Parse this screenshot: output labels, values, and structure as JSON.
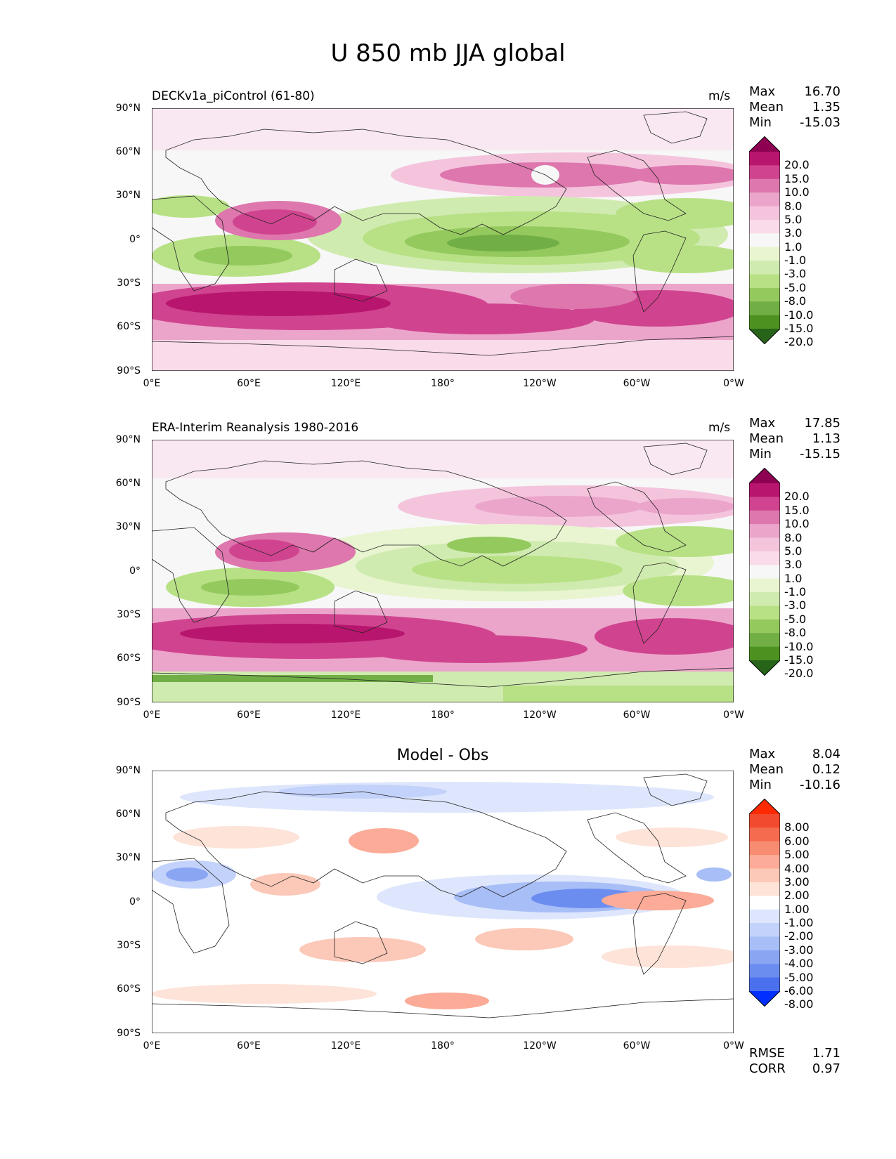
{
  "figure": {
    "title": "U 850 mb JJA global"
  },
  "axes": {
    "y_ticks": [
      "90°N",
      "60°N",
      "30°N",
      "0°",
      "30°S",
      "60°S",
      "90°S"
    ],
    "x_ticks": [
      "0°E",
      "60°E",
      "120°E",
      "180°",
      "120°W",
      "60°W",
      "0°W"
    ]
  },
  "panels": [
    {
      "title": "DECKv1a_piControl (61-80)",
      "units": "m/s",
      "stats": [
        {
          "label": "Max",
          "value": "16.70"
        },
        {
          "label": "Mean",
          "value": "1.35"
        },
        {
          "label": "Min",
          "value": "-15.03"
        }
      ],
      "colorbar": {
        "labels": [
          "20.0",
          "15.0",
          "10.0",
          "8.0",
          "5.0",
          "3.0",
          "1.0",
          "-1.0",
          "-3.0",
          "-5.0",
          "-8.0",
          "-10.0",
          "-15.0",
          "-20.0"
        ],
        "colors": [
          "#8e0152",
          "#b8166e",
          "#d0448f",
          "#de77ae",
          "#eba5cb",
          "#f4c4dd",
          "#fadbe9",
          "#f7f7f7",
          "#e8f5d0",
          "#d0ebb0",
          "#b8e186",
          "#94c95e",
          "#71af46",
          "#4d9221",
          "#276419"
        ]
      }
    },
    {
      "title": "ERA-Interim Reanalysis 1980-2016",
      "units": "m/s",
      "stats": [
        {
          "label": "Max",
          "value": "17.85"
        },
        {
          "label": "Mean",
          "value": "1.13"
        },
        {
          "label": "Min",
          "value": "-15.15"
        }
      ],
      "colorbar": {
        "labels": [
          "20.0",
          "15.0",
          "10.0",
          "8.0",
          "5.0",
          "3.0",
          "1.0",
          "-1.0",
          "-3.0",
          "-5.0",
          "-8.0",
          "-10.0",
          "-15.0",
          "-20.0"
        ],
        "colors": [
          "#8e0152",
          "#b8166e",
          "#d0448f",
          "#de77ae",
          "#eba5cb",
          "#f4c4dd",
          "#fadbe9",
          "#f7f7f7",
          "#e8f5d0",
          "#d0ebb0",
          "#b8e186",
          "#94c95e",
          "#71af46",
          "#4d9221",
          "#276419"
        ]
      }
    },
    {
      "title": "Model - Obs",
      "stats": [
        {
          "label": "Max",
          "value": "8.04"
        },
        {
          "label": "Mean",
          "value": "0.12"
        },
        {
          "label": "Min",
          "value": "-10.16"
        }
      ],
      "colorbar": {
        "labels": [
          "8.00",
          "6.00",
          "5.00",
          "4.00",
          "3.00",
          "2.00",
          "1.00",
          "-1.00",
          "-2.00",
          "-3.00",
          "-4.00",
          "-5.00",
          "-6.00",
          "-8.00"
        ],
        "colors": [
          "#ff2a00",
          "#f24a2e",
          "#f56b4f",
          "#f88c72",
          "#fbab97",
          "#fcc8b8",
          "#fde3d8",
          "#ffffff",
          "#dde6fc",
          "#c3d2fa",
          "#a8bef7",
          "#8aa6f3",
          "#6c8df0",
          "#4b70ee",
          "#0030ff"
        ]
      },
      "extra": [
        {
          "label": "RMSE",
          "value": "1.71"
        },
        {
          "label": "CORR",
          "value": "0.97"
        }
      ]
    }
  ]
}
